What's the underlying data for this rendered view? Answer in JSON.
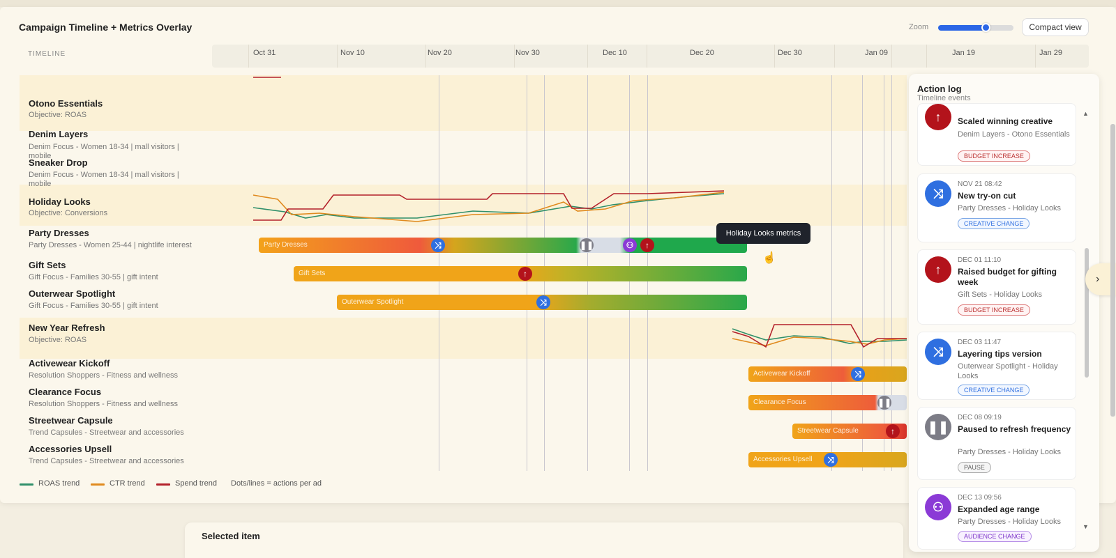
{
  "window": {
    "title": "Campaign Timeline + Metrics Overlay"
  },
  "toolbar": {
    "zoom_label": "Zoom",
    "zoom_value": 0.62,
    "compact_label": "Compact view"
  },
  "timeline": {
    "header_label": "TIMELINE",
    "ticks": [
      "Oct 31",
      "Nov 10",
      "Nov 20",
      "Nov 30",
      "Dec 10",
      "Dec 20",
      "Dec 30",
      "Jan 09",
      "Jan 19",
      "Jan 29"
    ]
  },
  "rows": [
    {
      "name": "Otono Essentials",
      "sub": "Objective: ROAS"
    },
    {
      "name": "Denim Layers",
      "sub": "Denim Focus - Women 18-34 | mall visitors | mobile"
    },
    {
      "name": "Sneaker Drop",
      "sub": "Denim Focus - Women 18-34 | mall visitors | mobile"
    },
    {
      "name": "Holiday Looks",
      "sub": "Objective: Conversions"
    },
    {
      "name": "Party Dresses",
      "sub": "Party Dresses - Women 25-44 | nightlife interest"
    },
    {
      "name": "Gift Sets",
      "sub": "Gift Focus - Families 30-55 | gift intent"
    },
    {
      "name": "Outerwear Spotlight",
      "sub": "Gift Focus - Families 30-55 | gift intent"
    },
    {
      "name": "New Year Refresh",
      "sub": "Objective: ROAS"
    },
    {
      "name": "Activewear Kickoff",
      "sub": "Resolution Shoppers - Fitness and wellness"
    },
    {
      "name": "Clearance Focus",
      "sub": "Resolution Shoppers - Fitness and wellness"
    },
    {
      "name": "Streetwear Capsule",
      "sub": "Trend Capsules - Streetwear and accessories"
    },
    {
      "name": "Accessories Upsell",
      "sub": "Trend Capsules - Streetwear and accessories"
    }
  ],
  "bars": {
    "party_dresses": "Party Dresses",
    "gift_sets": "Gift Sets",
    "outerwear": "Outerwear Spotlight",
    "activewear": "Activewear Kickoff",
    "clearance": "Clearance Focus",
    "streetwear": "Streetwear Capsule",
    "accessories": "Accessories Upsell"
  },
  "tooltip": "Holiday Looks metrics",
  "legend": {
    "roas": "ROAS trend",
    "ctr": "CTR trend",
    "spend": "Spend trend",
    "note": "Dots/lines = actions per ad"
  },
  "colors": {
    "roas": "#2f8f6a",
    "ctr": "#e08a1e",
    "spend": "#b3202a",
    "accent": "#2b66e6"
  },
  "action_log": {
    "title": "Action log",
    "subtitle": "Timeline events",
    "items": [
      {
        "time": "",
        "title": "Scaled winning creative",
        "sub": "Denim Layers - Otono Essentials",
        "tag": "BUDGET INCREASE",
        "icon": "arrow-up-icon"
      },
      {
        "time": "NOV 21 08:42",
        "title": "New try-on cut",
        "sub": "Party Dresses - Holiday Looks",
        "tag": "CREATIVE CHANGE",
        "icon": "shuffle-icon"
      },
      {
        "time": "DEC 01 11:10",
        "title": "Raised budget for gifting week",
        "sub": "Gift Sets - Holiday Looks",
        "tag": "BUDGET INCREASE",
        "icon": "arrow-up-icon"
      },
      {
        "time": "DEC 03 11:47",
        "title": "Layering tips version",
        "sub": "Outerwear Spotlight - Holiday Looks",
        "tag": "CREATIVE CHANGE",
        "icon": "shuffle-icon"
      },
      {
        "time": "DEC 08 09:19",
        "title": "Paused to refresh frequency",
        "sub": "Party Dresses - Holiday Looks",
        "tag": "PAUSE",
        "icon": "pause-icon"
      },
      {
        "time": "DEC 13 09:56",
        "title": "Expanded age range",
        "sub": "Party Dresses - Holiday Looks",
        "tag": "AUDIENCE CHANGE",
        "icon": "audience-icon"
      }
    ]
  },
  "selected": {
    "title": "Selected item"
  }
}
